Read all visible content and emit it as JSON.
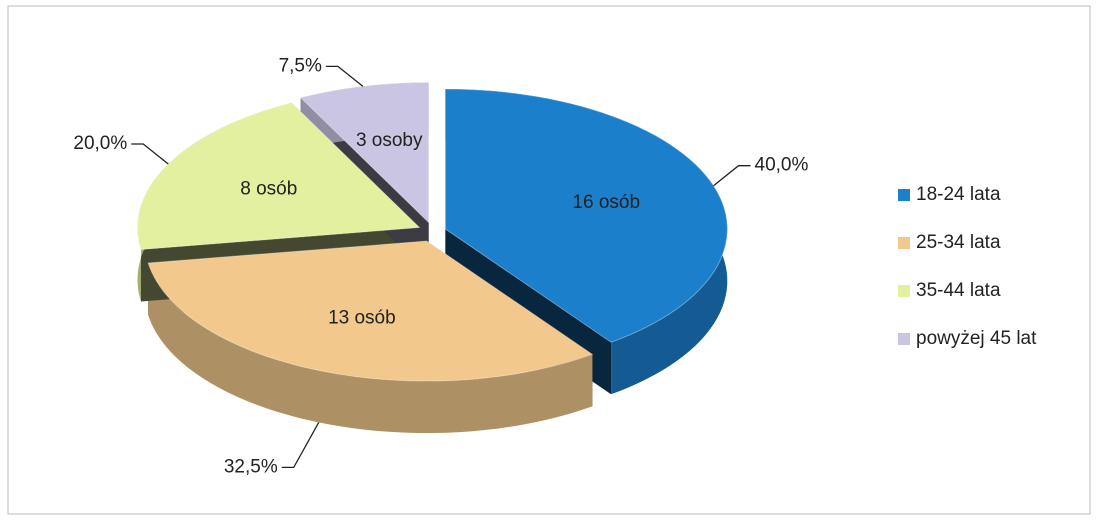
{
  "chart_data": {
    "type": "pie",
    "categories": [
      "18-24 lata",
      "25-34 lata",
      "35-44 lata",
      "powyżej 45 lat"
    ],
    "values": [
      40,
      32.5,
      20,
      7.5
    ],
    "value_labels": [
      "40,0%",
      "32,5%",
      "20,0%",
      "7,5%"
    ],
    "inner_labels": [
      "16 osób",
      "13 osób",
      "8 osób",
      "3 osoby"
    ],
    "colors": [
      "#1c7fcc",
      "#f2c88c",
      "#e3f0a0",
      "#c9c5e2"
    ],
    "legend": "right"
  }
}
